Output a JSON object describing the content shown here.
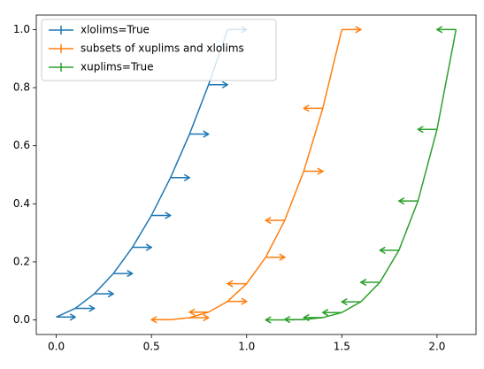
{
  "chart_data": {
    "type": "errorbar",
    "series": [
      {
        "name": "xlolims=True",
        "color": "#1f77b4",
        "x": [
          0,
          0.1,
          0.2,
          0.3,
          0.4,
          0.5,
          0.6,
          0.7,
          0.8,
          0.9
        ],
        "values": [
          0.01,
          0.04,
          0.09,
          0.16,
          0.25,
          0.36,
          0.49,
          0.64,
          0.81,
          1.0
        ],
        "xerr": 0.1,
        "xlolims": [
          true,
          true,
          true,
          true,
          true,
          true,
          true,
          true,
          true,
          true
        ],
        "xuplims": [
          false,
          false,
          false,
          false,
          false,
          false,
          false,
          false,
          false,
          false
        ]
      },
      {
        "name": "subsets of xuplims and xlolims",
        "color": "#ff7f0e",
        "x": [
          0.6,
          0.7,
          0.8,
          0.9,
          1.0,
          1.1,
          1.2,
          1.3,
          1.4,
          1.5
        ],
        "values": [
          0.001,
          0.008,
          0.027,
          0.064,
          0.125,
          0.216,
          0.343,
          0.512,
          0.729,
          1.0
        ],
        "xerr": 0.1,
        "xlolims": [
          false,
          true,
          false,
          true,
          false,
          true,
          false,
          true,
          false,
          true
        ],
        "xuplims": [
          true,
          false,
          true,
          false,
          true,
          false,
          true,
          false,
          true,
          false
        ]
      },
      {
        "name": "xuplims=True",
        "color": "#2ca02c",
        "x": [
          1.2,
          1.3,
          1.4,
          1.5,
          1.6,
          1.7,
          1.8,
          1.9,
          2.0,
          2.1
        ],
        "values": [
          0.0001,
          0.0016,
          0.0081,
          0.0256,
          0.0625,
          0.1296,
          0.2401,
          0.4096,
          0.6561,
          1.0
        ],
        "xerr": 0.1,
        "xlolims": [
          false,
          false,
          false,
          false,
          false,
          false,
          false,
          false,
          false,
          false
        ],
        "xuplims": [
          true,
          true,
          true,
          true,
          true,
          true,
          true,
          true,
          true,
          true
        ]
      }
    ],
    "xlim": [
      -0.105,
      2.205
    ],
    "xticks": [
      {
        "value": 0,
        "label": "0.0"
      },
      0.5,
      {
        "value": 1,
        "label": "1.0"
      },
      1.5,
      {
        "value": 2,
        "label": "2.0"
      }
    ],
    "ylim": [
      -0.05,
      1.05
    ],
    "yticks": [
      {
        "value": 0,
        "label": "0.0"
      },
      0.2,
      0.4,
      0.6,
      0.8,
      {
        "value": 1,
        "label": "1.0"
      }
    ],
    "legend": "upper left"
  }
}
